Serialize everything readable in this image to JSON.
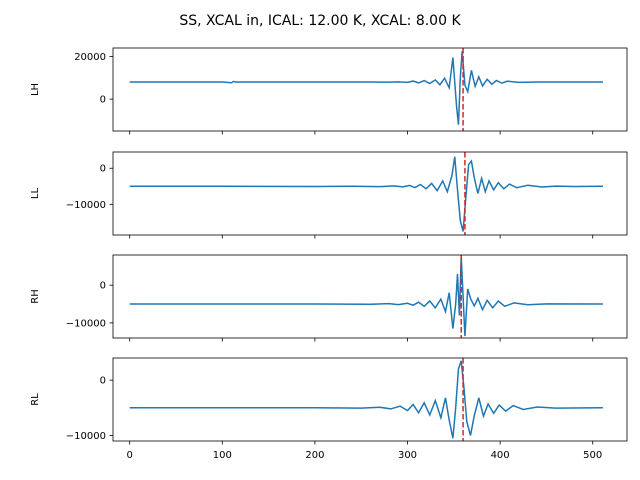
{
  "figure": {
    "title": "SS, XCAL in, ICAL: 12.00 K, XCAL: 8.00 K"
  },
  "chart_data": [
    {
      "type": "line",
      "ylabel": "LH",
      "xlim": [
        -18,
        537
      ],
      "ylim": [
        -15000,
        24000
      ],
      "yticks": [
        0,
        20000
      ],
      "xticks": [
        0,
        100,
        200,
        300,
        400,
        500
      ],
      "show_xticklabels": false,
      "baseline": 8000,
      "marker_x": 360,
      "line_color": "#1f77b4",
      "marker_color": "#d62728",
      "points": [
        [
          0,
          8000
        ],
        [
          100,
          8000
        ],
        [
          110,
          7700
        ],
        [
          112,
          8300
        ],
        [
          114,
          8000
        ],
        [
          200,
          8000
        ],
        [
          260,
          8050
        ],
        [
          280,
          7950
        ],
        [
          290,
          8100
        ],
        [
          300,
          7850
        ],
        [
          306,
          8450
        ],
        [
          312,
          7600
        ],
        [
          318,
          8700
        ],
        [
          324,
          7300
        ],
        [
          330,
          9000
        ],
        [
          335,
          6700
        ],
        [
          340,
          9800
        ],
        [
          345,
          5300
        ],
        [
          349,
          19500
        ],
        [
          353,
          -3500
        ],
        [
          355,
          -12000
        ],
        [
          357,
          10000
        ],
        [
          359,
          22500
        ],
        [
          362,
          6500
        ],
        [
          365,
          3500
        ],
        [
          369,
          13500
        ],
        [
          373,
          6000
        ],
        [
          377,
          10500
        ],
        [
          381,
          6200
        ],
        [
          386,
          9300
        ],
        [
          391,
          7000
        ],
        [
          396,
          8700
        ],
        [
          402,
          7500
        ],
        [
          408,
          8400
        ],
        [
          420,
          7850
        ],
        [
          440,
          8050
        ],
        [
          460,
          8000
        ],
        [
          511,
          8000
        ]
      ]
    },
    {
      "type": "line",
      "ylabel": "LL",
      "xlim": [
        -18,
        537
      ],
      "ylim": [
        -18500,
        4500
      ],
      "yticks": [
        -10000,
        0
      ],
      "xticks": [
        0,
        100,
        200,
        300,
        400,
        500
      ],
      "show_xticklabels": false,
      "baseline": -5000,
      "marker_x": 362,
      "line_color": "#1f77b4",
      "marker_color": "#d62728",
      "points": [
        [
          0,
          -5000
        ],
        [
          100,
          -5000
        ],
        [
          200,
          -5050
        ],
        [
          240,
          -5000
        ],
        [
          270,
          -5100
        ],
        [
          285,
          -4900
        ],
        [
          295,
          -5150
        ],
        [
          302,
          -4750
        ],
        [
          308,
          -5350
        ],
        [
          314,
          -4500
        ],
        [
          320,
          -5700
        ],
        [
          326,
          -4200
        ],
        [
          332,
          -6200
        ],
        [
          338,
          -3500
        ],
        [
          343,
          -6500
        ],
        [
          348,
          -2000
        ],
        [
          351,
          3200
        ],
        [
          354,
          -6000
        ],
        [
          357,
          -14500
        ],
        [
          360,
          -17500
        ],
        [
          363,
          -8000
        ],
        [
          366,
          1000
        ],
        [
          369,
          2000
        ],
        [
          372,
          -2500
        ],
        [
          376,
          -7000
        ],
        [
          380,
          -2800
        ],
        [
          384,
          -6500
        ],
        [
          388,
          -3500
        ],
        [
          393,
          -6000
        ],
        [
          398,
          -4000
        ],
        [
          404,
          -5700
        ],
        [
          410,
          -4400
        ],
        [
          418,
          -5400
        ],
        [
          430,
          -4700
        ],
        [
          445,
          -5200
        ],
        [
          460,
          -4950
        ],
        [
          480,
          -5050
        ],
        [
          511,
          -5000
        ]
      ]
    },
    {
      "type": "line",
      "ylabel": "RH",
      "xlim": [
        -18,
        537
      ],
      "ylim": [
        -14000,
        8000
      ],
      "yticks": [
        -10000,
        0
      ],
      "xticks": [
        0,
        100,
        200,
        300,
        400,
        500
      ],
      "show_xticklabels": false,
      "baseline": -5000,
      "marker_x": 358,
      "line_color": "#1f77b4",
      "marker_color": "#d62728",
      "points": [
        [
          0,
          -5000
        ],
        [
          100,
          -5000
        ],
        [
          200,
          -5000
        ],
        [
          260,
          -5050
        ],
        [
          280,
          -4900
        ],
        [
          290,
          -5150
        ],
        [
          300,
          -4800
        ],
        [
          306,
          -5300
        ],
        [
          312,
          -4500
        ],
        [
          318,
          -5600
        ],
        [
          324,
          -4200
        ],
        [
          330,
          -6000
        ],
        [
          336,
          -3700
        ],
        [
          341,
          -7000
        ],
        [
          345,
          -2000
        ],
        [
          349,
          -11500
        ],
        [
          352,
          -5000
        ],
        [
          354,
          3000
        ],
        [
          356,
          -8000
        ],
        [
          358,
          7500
        ],
        [
          360,
          -3000
        ],
        [
          362,
          -13500
        ],
        [
          365,
          -1000
        ],
        [
          368,
          -3500
        ],
        [
          372,
          -5500
        ],
        [
          376,
          -3500
        ],
        [
          381,
          -6500
        ],
        [
          386,
          -4000
        ],
        [
          392,
          -6000
        ],
        [
          398,
          -4200
        ],
        [
          405,
          -5600
        ],
        [
          415,
          -4700
        ],
        [
          430,
          -5200
        ],
        [
          450,
          -4950
        ],
        [
          511,
          -5000
        ]
      ]
    },
    {
      "type": "line",
      "ylabel": "RL",
      "xlim": [
        -18,
        537
      ],
      "ylim": [
        -11000,
        4000
      ],
      "yticks": [
        -10000,
        0
      ],
      "xticks": [
        0,
        100,
        200,
        300,
        400,
        500
      ],
      "xticklabels": [
        "0",
        "100",
        "200",
        "300",
        "400",
        "500"
      ],
      "show_xticklabels": true,
      "baseline": -5000,
      "marker_x": 360,
      "line_color": "#1f77b4",
      "marker_color": "#d62728",
      "points": [
        [
          0,
          -5000
        ],
        [
          100,
          -5000
        ],
        [
          200,
          -5000
        ],
        [
          250,
          -5050
        ],
        [
          270,
          -4900
        ],
        [
          282,
          -5200
        ],
        [
          292,
          -4700
        ],
        [
          300,
          -5500
        ],
        [
          306,
          -4400
        ],
        [
          312,
          -5900
        ],
        [
          318,
          -4100
        ],
        [
          324,
          -6300
        ],
        [
          330,
          -3700
        ],
        [
          336,
          -6800
        ],
        [
          341,
          -3200
        ],
        [
          345,
          -7200
        ],
        [
          349,
          -10500
        ],
        [
          352,
          -5000
        ],
        [
          355,
          2000
        ],
        [
          358,
          3500
        ],
        [
          361,
          -1500
        ],
        [
          364,
          -7500
        ],
        [
          368,
          -10000
        ],
        [
          372,
          -6500
        ],
        [
          377,
          -3200
        ],
        [
          382,
          -6500
        ],
        [
          387,
          -4300
        ],
        [
          393,
          -6000
        ],
        [
          399,
          -4500
        ],
        [
          406,
          -5600
        ],
        [
          414,
          -4600
        ],
        [
          425,
          -5300
        ],
        [
          440,
          -4850
        ],
        [
          460,
          -5050
        ],
        [
          511,
          -5000
        ]
      ]
    }
  ]
}
